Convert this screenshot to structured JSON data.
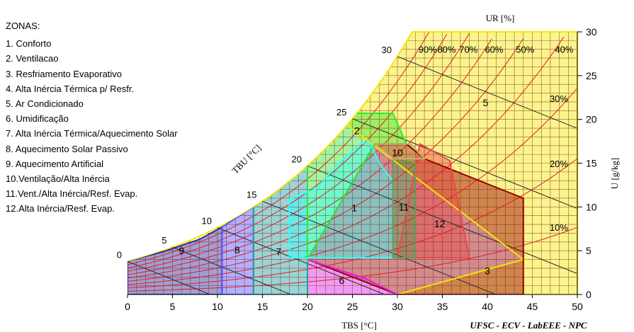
{
  "legend_title": "ZONAS:",
  "zones": [
    "1. Conforto",
    "2. Ventilacao",
    "3. Resfriamento Evaporativo",
    "4. Alta Inércia Térmica p/ Resfr.",
    "5. Ar Condicionado",
    "6. Umidificação",
    "7. Alta Inércia Térmica/Aquecimento Solar",
    "8. Aquecimento Solar Passivo",
    "9. Aquecimento Artificial",
    "10.Ventilação/Alta Inércia",
    "11.Vent./Alta Inércia/Resf. Evap.",
    "12.Alta Inércia/Resf. Evap."
  ],
  "credits": "UFSC - ECV - LabEEE - NPC",
  "chart_data": {
    "type": "psychrometric",
    "xlabel": "TBS [°C]",
    "ylabel": "U [g/kg]",
    "rh_label": "UR [%]",
    "wb_label": "TBU [°C]",
    "xlim": [
      0,
      50
    ],
    "ylim": [
      0,
      30
    ],
    "x_ticks": [
      0,
      5,
      10,
      15,
      20,
      25,
      30,
      35,
      40,
      45,
      50
    ],
    "y_ticks": [
      0,
      5,
      10,
      15,
      20,
      25,
      30
    ],
    "rh_curves": [
      10,
      20,
      30,
      40,
      50,
      60,
      70,
      80,
      90
    ],
    "rh_labels": [
      "90%",
      "80%",
      "70%",
      "60%",
      "50%",
      "40%",
      "30%",
      "20%",
      "10%"
    ],
    "wb_lines": [
      0,
      5,
      10,
      15,
      20,
      25,
      30
    ],
    "zones": [
      {
        "id": "5",
        "color": "#f2e600",
        "polygon": [
          [
            22.7,
            20.7
          ],
          [
            29.9,
            30
          ],
          [
            50,
            30
          ],
          [
            50,
            0
          ],
          [
            30,
            0
          ],
          [
            44,
            4
          ]
        ]
      },
      {
        "id": "3",
        "color": "#990000",
        "polygon": [
          [
            20,
            4
          ],
          [
            30,
            0
          ],
          [
            44,
            0
          ],
          [
            44,
            11
          ],
          [
            33,
            15.5
          ],
          [
            31,
            17.2
          ],
          [
            27.5,
            17.2
          ]
        ]
      },
      {
        "id": "12",
        "color": "#e84a4a",
        "polygon": [
          [
            32.5,
            17.2
          ],
          [
            35.8,
            15.3
          ],
          [
            38,
            4.2
          ],
          [
            30,
            4.2
          ]
        ]
      },
      {
        "id": "6",
        "color": "#e020e0",
        "polygon": [
          [
            20,
            4
          ],
          [
            26.5,
            1.8
          ],
          [
            30,
            0
          ],
          [
            20,
            0
          ]
        ]
      },
      {
        "id": "9",
        "color": "#2a2a9f",
        "polygon": [
          [
            0,
            3.8
          ],
          [
            4,
            4.9
          ],
          [
            8,
            6.3
          ],
          [
            10.5,
            7.7
          ],
          [
            10.5,
            0
          ],
          [
            0,
            0
          ]
        ]
      },
      {
        "id": "8",
        "color": "#5252ff",
        "polygon": [
          [
            10.5,
            7.7
          ],
          [
            14,
            10
          ],
          [
            14,
            0
          ],
          [
            10.5,
            0
          ]
        ]
      },
      {
        "id": "7",
        "color": "#20a0a0",
        "polygon": [
          [
            14,
            10
          ],
          [
            17.5,
            12.6
          ],
          [
            20,
            14.8
          ],
          [
            20,
            0
          ],
          [
            14,
            0
          ]
        ]
      },
      {
        "id": "2",
        "color": "#2ee82e",
        "polygon": [
          [
            20,
            14.8
          ],
          [
            22.7,
            20.7
          ],
          [
            29.5,
            20.7
          ],
          [
            31,
            17.2
          ],
          [
            27.5,
            17.2
          ],
          [
            20,
            4
          ]
        ]
      },
      {
        "id": "1",
        "color": "#33ffff",
        "polygon": [
          [
            18,
            10.9
          ],
          [
            21,
            12.1
          ],
          [
            23.5,
            15
          ],
          [
            26,
            17.3
          ],
          [
            27,
            17.3
          ],
          [
            28,
            15
          ],
          [
            29.5,
            13
          ],
          [
            29.5,
            4.2
          ],
          [
            18,
            4.2
          ]
        ]
      },
      {
        "id": "11",
        "color": "#56a056",
        "polygon": [
          [
            29.5,
            4.2
          ],
          [
            32,
            4.2
          ],
          [
            32,
            15
          ],
          [
            29.5,
            15.5
          ]
        ]
      },
      {
        "id": "10",
        "color": "#c8b070",
        "polygon": [
          [
            27.5,
            17.2
          ],
          [
            31.5,
            17.2
          ],
          [
            33,
            15.5
          ],
          [
            29.5,
            15.5
          ]
        ]
      }
    ],
    "zone_labels": [
      {
        "id": "1",
        "x": 25.2,
        "y": 9.5
      },
      {
        "id": "2",
        "x": 25.5,
        "y": 18.3
      },
      {
        "id": "3",
        "x": 40.0,
        "y": 2.3
      },
      {
        "id": "5",
        "x": 39.8,
        "y": 21.5
      },
      {
        "id": "6",
        "x": 23.8,
        "y": 1.2
      },
      {
        "id": "7",
        "x": 16.8,
        "y": 4.5
      },
      {
        "id": "8",
        "x": 12.2,
        "y": 4.7
      },
      {
        "id": "9",
        "x": 6.0,
        "y": 4.6
      },
      {
        "id": "10",
        "x": 30.0,
        "y": 15.8
      },
      {
        "id": "11",
        "x": 30.7,
        "y": 9.6
      },
      {
        "id": "12",
        "x": 34.7,
        "y": 7.7
      }
    ]
  }
}
